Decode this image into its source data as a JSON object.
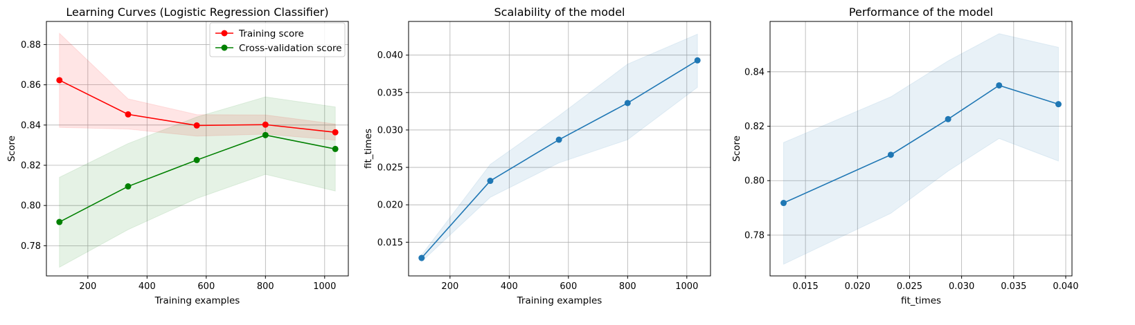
{
  "colors": {
    "training": "#ff0000",
    "cv": "#008000",
    "fit": "#1f77b4",
    "grid": "#b0b0b0"
  },
  "chart_data": [
    {
      "id": "learning",
      "type": "line",
      "title": "Learning Curves (Logistic Regression Classifier)",
      "xlabel": "Training examples",
      "ylabel": "Score",
      "xlim": [
        60,
        1080
      ],
      "ylim": [
        0.765,
        0.8915
      ],
      "xticks": [
        200,
        400,
        600,
        800,
        1000
      ],
      "xtick_labels": [
        "200",
        "400",
        "600",
        "800",
        "1000"
      ],
      "yticks": [
        0.78,
        0.8,
        0.82,
        0.84,
        0.86,
        0.88
      ],
      "ytick_labels": [
        "0.78",
        "0.80",
        "0.82",
        "0.84",
        "0.86",
        "0.88"
      ],
      "grid": true,
      "legend": "top-right",
      "series": [
        {
          "name": "Training score",
          "color_key": "training",
          "x": [
            104,
            336,
            568,
            800,
            1036
          ],
          "y": [
            0.8623,
            0.8453,
            0.8398,
            0.8402,
            0.8364
          ],
          "lower": [
            0.8388,
            0.838,
            0.8345,
            0.8355,
            0.8325
          ],
          "upper": [
            0.8856,
            0.853,
            0.8452,
            0.845,
            0.8405
          ]
        },
        {
          "name": "Cross-validation score",
          "color_key": "cv",
          "x": [
            104,
            336,
            568,
            800,
            1036
          ],
          "y": [
            0.7918,
            0.8095,
            0.8226,
            0.835,
            0.8281
          ],
          "lower": [
            0.7693,
            0.788,
            0.8035,
            0.8155,
            0.8072
          ],
          "upper": [
            0.814,
            0.8308,
            0.844,
            0.854,
            0.849
          ]
        }
      ]
    },
    {
      "id": "scalability",
      "type": "line",
      "title": "Scalability of the model",
      "xlabel": "Training examples",
      "ylabel": "fit_times",
      "xlim": [
        60,
        1080
      ],
      "ylim": [
        0.0105,
        0.0445
      ],
      "xticks": [
        200,
        400,
        600,
        800,
        1000
      ],
      "xtick_labels": [
        "200",
        "400",
        "600",
        "800",
        "1000"
      ],
      "yticks": [
        0.015,
        0.02,
        0.025,
        0.03,
        0.035,
        0.04
      ],
      "ytick_labels": [
        "0.015",
        "0.020",
        "0.025",
        "0.030",
        "0.035",
        "0.040"
      ],
      "grid": true,
      "series": [
        {
          "color_key": "fit",
          "x": [
            104,
            336,
            568,
            800,
            1036
          ],
          "y": [
            0.0129,
            0.0232,
            0.0287,
            0.0336,
            0.0393
          ],
          "lower": [
            0.0124,
            0.021,
            0.0256,
            0.0287,
            0.0357
          ],
          "upper": [
            0.0133,
            0.0254,
            0.0319,
            0.0388,
            0.0428
          ]
        }
      ]
    },
    {
      "id": "performance",
      "type": "line",
      "title": "Performance of the model",
      "xlabel": "fit_times",
      "ylabel": "Score",
      "xlim": [
        0.0116,
        0.0406
      ],
      "ylim": [
        0.765,
        0.8585
      ],
      "xticks": [
        0.015,
        0.02,
        0.025,
        0.03,
        0.035,
        0.04
      ],
      "xtick_labels": [
        "0.015",
        "0.020",
        "0.025",
        "0.030",
        "0.035",
        "0.040"
      ],
      "yticks": [
        0.78,
        0.8,
        0.82,
        0.84
      ],
      "ytick_labels": [
        "0.78",
        "0.80",
        "0.82",
        "0.84"
      ],
      "grid": true,
      "series": [
        {
          "color_key": "fit",
          "x": [
            0.0129,
            0.0232,
            0.0287,
            0.0336,
            0.0393
          ],
          "y": [
            0.7918,
            0.8095,
            0.8226,
            0.835,
            0.8281
          ],
          "lower": [
            0.7693,
            0.788,
            0.8035,
            0.8155,
            0.8072
          ],
          "upper": [
            0.814,
            0.8308,
            0.844,
            0.854,
            0.849
          ]
        }
      ]
    }
  ]
}
